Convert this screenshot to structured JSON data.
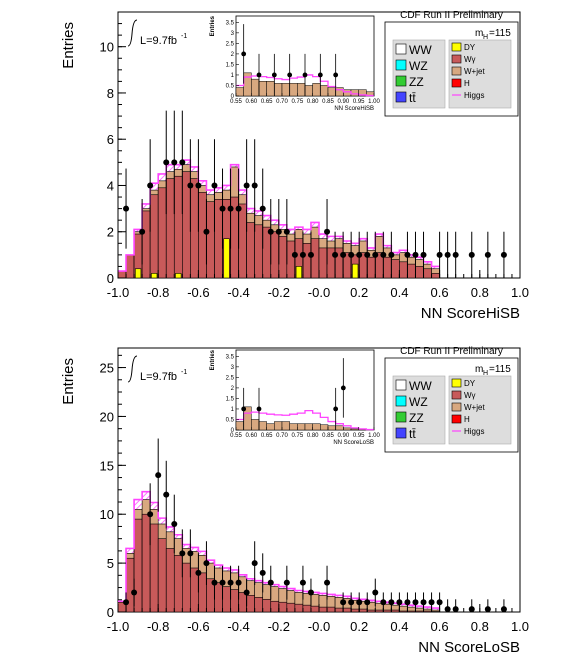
{
  "chart_data": [
    {
      "type": "bar",
      "xlabel": "NN ScoreHiSB",
      "ylabel": "Entries",
      "experiment_label": "CDF Run II Preliminary",
      "lumi_label": "L=9.7fb",
      "lumi_sup": "-1",
      "mass_label": "m",
      "mass_sub": "H",
      "mass_value": "=115",
      "xlim": [
        -1.0,
        1.0
      ],
      "ylim": [
        0,
        11.5
      ],
      "xticks": [
        "-1.0",
        "-0.8",
        "-0.6",
        "-0.4",
        "-0.2",
        "-0.0",
        "0.2",
        "0.4",
        "0.6",
        "0.8",
        "1.0"
      ],
      "yticks": [
        "0",
        "2",
        "4",
        "6",
        "8",
        "10"
      ],
      "ytick_values": [
        0,
        2,
        4,
        6,
        8,
        10
      ],
      "bin_start": -1.0,
      "bin_width": 0.04,
      "series": [
        {
          "name": "W+jet stack",
          "values": [
            0.3,
            1.0,
            2.0,
            3.0,
            3.8,
            4.2,
            4.6,
            4.7,
            4.9,
            4.6,
            4.0,
            3.6,
            3.7,
            3.8,
            4.8,
            3.6,
            2.8,
            2.7,
            2.5,
            2.3,
            2.1,
            1.9,
            2.1,
            1.9,
            2.2,
            1.7,
            1.6,
            1.7,
            1.5,
            1.4,
            1.6,
            1.2,
            1.8,
            1.3,
            1.0,
            1.1,
            0.9,
            0.8,
            0.6,
            0.4
          ]
        },
        {
          "name": "Wγ",
          "values": [
            0.3,
            1.0,
            1.9,
            2.9,
            3.6,
            3.9,
            4.3,
            4.4,
            4.6,
            4.3,
            3.7,
            3.3,
            3.4,
            3.4,
            3.5,
            3.2,
            2.4,
            2.3,
            2.2,
            2.0,
            1.8,
            1.6,
            1.7,
            1.5,
            1.7,
            1.3,
            1.3,
            1.3,
            1.1,
            1.0,
            1.1,
            0.9,
            1.1,
            0.9,
            0.8,
            0.7,
            0.6,
            0.5,
            0.4,
            0.2
          ]
        },
        {
          "name": "DY",
          "values": [
            0,
            0,
            0.4,
            0,
            0.2,
            0,
            0,
            0.2,
            0,
            0,
            0,
            0,
            0,
            1.7,
            0,
            0,
            0,
            0,
            0,
            0,
            0,
            0,
            0.5,
            0,
            0,
            0,
            0,
            0,
            0,
            0.6,
            0,
            0,
            0,
            0,
            0,
            0,
            0,
            0,
            0,
            0
          ]
        },
        {
          "name": "Higgs",
          "values": [
            0.3,
            1.0,
            2.1,
            3.2,
            4.1,
            4.5,
            4.9,
            4.9,
            5.1,
            4.8,
            4.2,
            3.8,
            3.9,
            4.0,
            4.9,
            3.8,
            3.0,
            2.9,
            2.7,
            2.5,
            2.3,
            2.1,
            2.2,
            2.1,
            2.4,
            1.9,
            1.8,
            1.8,
            1.6,
            1.5,
            1.7,
            1.3,
            1.9,
            1.4,
            1.1,
            1.2,
            1.0,
            0.9,
            0.7,
            0.5
          ]
        }
      ],
      "data_points": {
        "x": [
          -0.96,
          -0.88,
          -0.84,
          -0.76,
          -0.72,
          -0.68,
          -0.64,
          -0.6,
          -0.56,
          -0.52,
          -0.48,
          -0.44,
          -0.4,
          -0.36,
          -0.32,
          -0.28,
          -0.24,
          -0.2,
          -0.16,
          -0.12,
          -0.08,
          -0.04,
          0.04,
          0.08,
          0.12,
          0.16,
          0.2,
          0.24,
          0.28,
          0.32,
          0.36,
          0.44,
          0.48,
          0.52,
          0.6,
          0.64,
          0.68,
          0.76,
          0.84,
          0.92
        ],
        "y": [
          3,
          2,
          4,
          5,
          5,
          5,
          4,
          4,
          2,
          4,
          3,
          3,
          3,
          4,
          4,
          3,
          2,
          2,
          2,
          1,
          1,
          1,
          2,
          1,
          1,
          1,
          1,
          1,
          1,
          1,
          1,
          1,
          1,
          1,
          1,
          1,
          1,
          1,
          1,
          1
        ]
      },
      "inset": {
        "xlabel": "NN ScoreHiSB",
        "ylabel": "Entries",
        "xlim": [
          0.55,
          1.0
        ],
        "ylim": [
          0,
          3.8
        ],
        "xticks": [
          "0.55",
          "0.60",
          "0.65",
          "0.70",
          "0.75",
          "0.80",
          "0.85",
          "0.90",
          "0.95",
          "1.00"
        ],
        "yticks": [
          "0",
          "0.5",
          "1",
          "1.5",
          "2",
          "2.5",
          "3",
          "3.5"
        ],
        "ytick_values": [
          0,
          0.5,
          1,
          1.5,
          2,
          2.5,
          3,
          3.5
        ],
        "bin_start": 0.55,
        "bin_width": 0.025,
        "stack": [
          0.4,
          1.1,
          0.8,
          0.7,
          0.7,
          0.6,
          0.6,
          0.6,
          0.6,
          0.5,
          0.6,
          0.5,
          0.4,
          0.4,
          0.3,
          0.3,
          0.3,
          0.2
        ],
        "higgs": [
          0.5,
          0.9,
          0.95,
          0.92,
          0.88,
          0.82,
          0.78,
          0.85,
          0.9,
          1.0,
          0.92,
          0.7,
          0.45,
          0.3,
          0.2,
          0.1,
          0.05,
          0.02
        ],
        "data_points": {
          "x": [
            0.575,
            0.625,
            0.675,
            0.725,
            0.775,
            0.825,
            0.875
          ],
          "y": [
            2,
            1,
            1,
            1,
            1,
            1,
            1
          ]
        }
      },
      "legend": [
        {
          "label": "WW",
          "color": "#ffffff"
        },
        {
          "label": "DY",
          "color": "#ffff00"
        },
        {
          "label": "WZ",
          "color": "#00ffff"
        },
        {
          "label": "Wγ",
          "color": "#c85a5a"
        },
        {
          "label": "ZZ",
          "color": "#33cc33"
        },
        {
          "label": "W+jet",
          "color": "#d8a880"
        },
        {
          "label": "tt̄",
          "color": "#4444ff"
        },
        {
          "label": "H",
          "color": "#ff0000"
        },
        {
          "label": "Higgs",
          "color": "#ff44ff"
        }
      ]
    },
    {
      "type": "bar",
      "xlabel": "NN ScoreLoSB",
      "ylabel": "Entries",
      "experiment_label": "CDF Run II Preliminary",
      "lumi_label": "L=9.7fb",
      "lumi_sup": "-1",
      "mass_label": "m",
      "mass_sub": "H",
      "mass_value": "=115",
      "xlim": [
        -1.0,
        1.0
      ],
      "ylim": [
        0,
        27
      ],
      "xticks": [
        "-1.0",
        "-0.8",
        "-0.6",
        "-0.4",
        "-0.2",
        "-0.0",
        "0.2",
        "0.4",
        "0.6",
        "0.8",
        "1.0"
      ],
      "yticks": [
        "0",
        "5",
        "10",
        "15",
        "20",
        "25"
      ],
      "ytick_values": [
        0,
        5,
        10,
        15,
        20,
        25
      ],
      "bin_start": -1.0,
      "bin_width": 0.04,
      "series": [
        {
          "name": "W+jet stack",
          "values": [
            1.0,
            6.0,
            10.5,
            11.5,
            10.5,
            9.0,
            8.2,
            7.5,
            6.5,
            6.2,
            5.8,
            5.0,
            4.5,
            4.2,
            4.0,
            3.6,
            3.2,
            3.0,
            2.8,
            2.6,
            2.4,
            2.2,
            2.0,
            1.9,
            1.8,
            1.7,
            1.6,
            1.5,
            1.4,
            1.2,
            1.1,
            1.0,
            0.9,
            0.8,
            0.7,
            0.6,
            0.5,
            0.4,
            0.3,
            0.2
          ]
        },
        {
          "name": "Wγ",
          "values": [
            1.0,
            5.5,
            9.5,
            10.0,
            9.0,
            7.5,
            6.5,
            5.8,
            5.0,
            4.5,
            4.0,
            3.4,
            3.0,
            2.6,
            2.3,
            2.0,
            1.7,
            1.5,
            1.3,
            1.1,
            1.0,
            0.9,
            0.8,
            0.7,
            0.6,
            0.5,
            0.5,
            0.4,
            0.4,
            0.3,
            0.3,
            0.2,
            0.2,
            0.2,
            0.2,
            0.1,
            0.1,
            0.1,
            0.1,
            0.05
          ]
        },
        {
          "name": "DY",
          "values": [
            0,
            0,
            0,
            0,
            0,
            0,
            0,
            0,
            0,
            0,
            0,
            0,
            0,
            0,
            0,
            0,
            0,
            0,
            0,
            0,
            0,
            0,
            0,
            0,
            0,
            0,
            0,
            0,
            0,
            0,
            0,
            0,
            0,
            0,
            0,
            0,
            0,
            0,
            0,
            0
          ]
        },
        {
          "name": "Higgs",
          "values": [
            1.1,
            6.5,
            11.5,
            12.3,
            11.2,
            9.6,
            8.7,
            7.9,
            6.9,
            6.6,
            6.2,
            5.3,
            4.8,
            4.5,
            4.3,
            3.8,
            3.4,
            3.2,
            3.0,
            2.8,
            2.6,
            2.4,
            2.2,
            2.1,
            2.0,
            1.9,
            1.8,
            1.7,
            1.6,
            1.4,
            1.3,
            1.2,
            1.1,
            1.0,
            0.9,
            0.8,
            0.7,
            0.6,
            0.5,
            0.4
          ]
        }
      ],
      "data_points": {
        "x": [
          -0.96,
          -0.92,
          -0.84,
          -0.8,
          -0.76,
          -0.72,
          -0.68,
          -0.64,
          -0.6,
          -0.56,
          -0.52,
          -0.48,
          -0.44,
          -0.4,
          -0.36,
          -0.32,
          -0.28,
          -0.24,
          -0.16,
          -0.08,
          -0.04,
          0.04,
          0.12,
          0.16,
          0.2,
          0.24,
          0.28,
          0.32,
          0.36,
          0.4,
          0.44,
          0.48,
          0.52,
          0.56,
          0.6,
          0.64,
          0.68,
          0.76,
          0.84,
          0.92
        ],
        "y": [
          1,
          2,
          10,
          14,
          12,
          9,
          6,
          6,
          4,
          5,
          3,
          3,
          3,
          3,
          2,
          5,
          4,
          3,
          3,
          3,
          2,
          3,
          1,
          1,
          1,
          1,
          2,
          1,
          1,
          1,
          1,
          1,
          1,
          1,
          1,
          0.3,
          0.3,
          0.3,
          0.3,
          0.3
        ]
      },
      "inset": {
        "xlabel": "NN ScoreLoSB",
        "ylabel": "Entries",
        "xlim": [
          0.55,
          1.0
        ],
        "ylim": [
          0,
          3.8
        ],
        "xticks": [
          "0.55",
          "0.60",
          "0.65",
          "0.70",
          "0.75",
          "0.80",
          "0.85",
          "0.90",
          "0.95",
          "1.00"
        ],
        "yticks": [
          "0",
          "0.5",
          "1",
          "1.5",
          "2",
          "2.5",
          "3",
          "3.5"
        ],
        "ytick_values": [
          0,
          0.5,
          1,
          1.5,
          2,
          2.5,
          3,
          3.5
        ],
        "bin_start": 0.55,
        "bin_width": 0.025,
        "stack": [
          0.4,
          1.1,
          0.5,
          0.4,
          0.3,
          0.4,
          0.4,
          0.3,
          0.3,
          0.3,
          0.3,
          0.25,
          0.2,
          0.2,
          0.1,
          0.05,
          0.05,
          0.0
        ],
        "higgs": [
          0.5,
          0.8,
          0.85,
          0.8,
          0.75,
          0.72,
          0.7,
          0.75,
          0.8,
          0.92,
          0.8,
          0.6,
          0.4,
          0.3,
          0.2,
          0.1,
          0.05,
          0.02
        ],
        "data_points": {
          "x": [
            0.575,
            0.625,
            0.875,
            0.9
          ],
          "y": [
            1,
            1,
            1,
            2
          ]
        }
      },
      "legend": [
        {
          "label": "WW",
          "color": "#ffffff"
        },
        {
          "label": "DY",
          "color": "#ffff00"
        },
        {
          "label": "WZ",
          "color": "#00ffff"
        },
        {
          "label": "Wγ",
          "color": "#c85a5a"
        },
        {
          "label": "ZZ",
          "color": "#33cc33"
        },
        {
          "label": "W+jet",
          "color": "#d8a880"
        },
        {
          "label": "tt̄",
          "color": "#4444ff"
        },
        {
          "label": "H",
          "color": "#ff0000"
        },
        {
          "label": "Higgs",
          "color": "#ff44ff"
        }
      ]
    }
  ]
}
